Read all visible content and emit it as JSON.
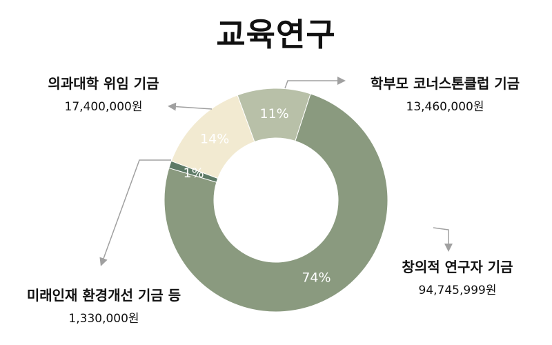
{
  "chart_data": {
    "type": "pie",
    "donut": true,
    "title": "교육연구",
    "slices": [
      {
        "name": "창의적 연구자  기금",
        "amount": "94,745,999원",
        "value": 94745999,
        "pct_label": "74%",
        "color": "#8a9a7f"
      },
      {
        "name": "미래인재 환경개선 기금 등",
        "amount": "1,330,000원",
        "value": 1330000,
        "pct_label": "1%",
        "color": "#5d7a66"
      },
      {
        "name": "의과대학 위임 기금",
        "amount": "17,400,000원",
        "value": 17400000,
        "pct_label": "14%",
        "color": "#f2ead1"
      },
      {
        "name": "학부모 코너스톤클럽 기금",
        "amount": "13,460,000원",
        "value": 13460000,
        "pct_label": "11%",
        "color": "#b8c0a8"
      }
    ]
  }
}
